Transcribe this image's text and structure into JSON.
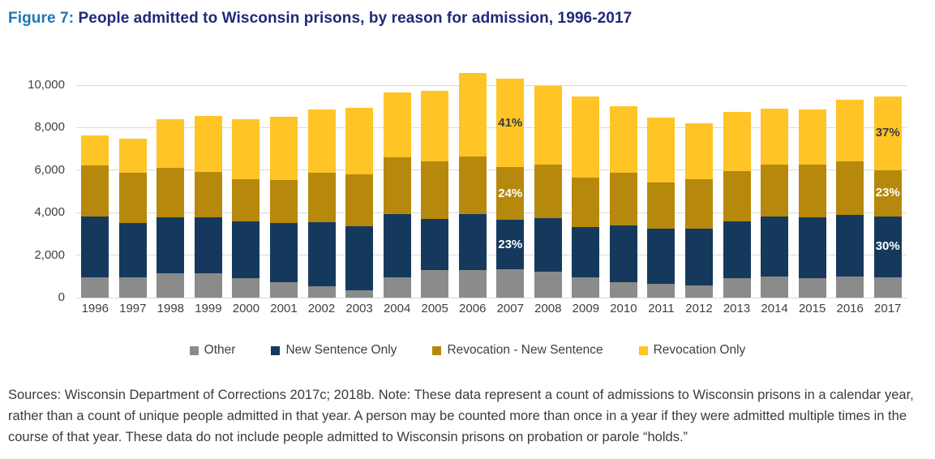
{
  "title": {
    "prefix": "Figure 7:",
    "main": "People admitted to Wisconsin prisons, by reason for admission, 1996-2017"
  },
  "colors": {
    "title_prefix": "#2077B4",
    "title_main": "#20297A",
    "axis_text": "#404040",
    "gridline": "#D9D9D9",
    "footnote_text": "#3B3B3B",
    "background": "#FFFFFF",
    "other": "#8B8B8B",
    "new_sentence_only": "#14395D",
    "revocation_new_sentence": "#B6880C",
    "revocation_only": "#FFC425"
  },
  "chart_data": {
    "type": "bar",
    "stacked": true,
    "title": "People admitted to Wisconsin prisons, by reason for admission, 1996-2017",
    "xlabel": "",
    "ylabel": "",
    "ylim": [
      0,
      10000
    ],
    "grid": true,
    "legend_position": "bottom",
    "categories": [
      "1996",
      "1997",
      "1998",
      "1999",
      "2000",
      "2001",
      "2002",
      "2003",
      "2004",
      "2005",
      "2006",
      "2007",
      "2008",
      "2009",
      "2010",
      "2011",
      "2012",
      "2013",
      "2014",
      "2015",
      "2016",
      "2017"
    ],
    "yticks": [
      {
        "value": 0,
        "label": "0"
      },
      {
        "value": 2000,
        "label": "2,000"
      },
      {
        "value": 4000,
        "label": "4,000"
      },
      {
        "value": 6000,
        "label": "6,000"
      },
      {
        "value": 8000,
        "label": "8,000"
      },
      {
        "value": 10000,
        "label": "10,000"
      }
    ],
    "series": [
      {
        "name": "Other",
        "color": "#8B8B8B",
        "values": [
          970,
          940,
          1130,
          1160,
          910,
          710,
          520,
          360,
          970,
          1290,
          1280,
          1320,
          1220,
          940,
          710,
          650,
          580,
          930,
          990,
          930,
          990,
          970
        ]
      },
      {
        "name": "New Sentence Only",
        "color": "#14395D",
        "values": [
          2860,
          2570,
          2660,
          2610,
          2670,
          2800,
          3020,
          3000,
          2970,
          2420,
          2650,
          2340,
          2510,
          2380,
          2700,
          2610,
          2650,
          2670,
          2840,
          2860,
          2900,
          2860
        ]
      },
      {
        "name": "Revocation - New Sentence",
        "color": "#B6880C",
        "values": [
          2390,
          2380,
          2330,
          2160,
          2000,
          2040,
          2350,
          2440,
          2670,
          2700,
          2710,
          2470,
          2520,
          2330,
          2460,
          2160,
          2340,
          2360,
          2420,
          2460,
          2510,
          2170
        ]
      },
      {
        "name": "Revocation Only",
        "color": "#FFC425",
        "values": [
          1430,
          1590,
          2290,
          2610,
          2800,
          2950,
          2970,
          3130,
          3050,
          3340,
          3940,
          4170,
          3710,
          3810,
          3140,
          3040,
          2650,
          2770,
          2630,
          2610,
          2900,
          3460
        ]
      }
    ],
    "annotations": [
      {
        "category": "2007",
        "labels": [
          {
            "series": "New Sentence Only",
            "text": "23%",
            "color": "#FFFFFF"
          },
          {
            "series": "Revocation - New Sentence",
            "text": "24%",
            "color": "#FFFFFF"
          },
          {
            "series": "Revocation Only",
            "text": "41%",
            "color": "#3B3B3B"
          }
        ]
      },
      {
        "category": "2017",
        "labels": [
          {
            "series": "New Sentence Only",
            "text": "30%",
            "color": "#FFFFFF"
          },
          {
            "series": "Revocation - New Sentence",
            "text": "23%",
            "color": "#FFFFFF"
          },
          {
            "series": "Revocation Only",
            "text": "37%",
            "color": "#3B3B3B"
          }
        ]
      }
    ]
  },
  "footnote": "Sources: Wisconsin Department of Corrections 2017c; 2018b. Note: These data represent a count of admissions to Wisconsin prisons in a calendar year, rather than a count of unique people admitted in that year. A person may be counted more than once in a year if they were admitted multiple times in the course of that year. These data do not include people admitted to Wisconsin prisons on probation or parole “holds.”"
}
